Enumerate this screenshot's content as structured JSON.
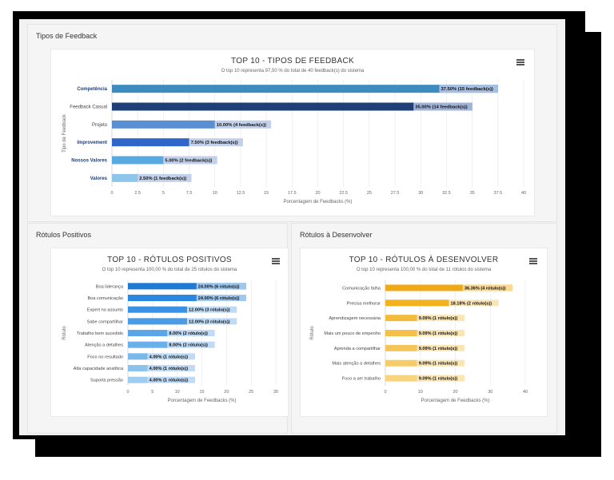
{
  "panels": {
    "feedback_types": {
      "header": "Tipos de Feedback",
      "chart_title": "TOP 10 - TIPOS DE FEEDBACK",
      "chart_subtitle": "O top 10 representa 97,50 % do total de 40 feedback(s) do sistema",
      "y_axis_label": "Tipo de Feedback",
      "x_axis_label": "Porcentagem de Feedbacks (%)"
    },
    "positive_labels": {
      "header": "Rótulos Positivos",
      "chart_title": "TOP 10 - RÓTULOS POSITIVOS",
      "chart_subtitle": "O top 10 representa 100,00 % do total de 25 rótulos do sistema",
      "y_axis_label": "Rótulo",
      "x_axis_label": "Porcentagem de Feedbacks (%)"
    },
    "develop_labels": {
      "header": "Rótulos à Desenvolver",
      "chart_title": "TOP 10 - RÓTULOS À DESENVOLVER",
      "chart_subtitle": "O top 10 representa 100,00 % do total de 11 rótulos do sistema",
      "y_axis_label": "Rótulo",
      "x_axis_label": "Porcentagem de Feedbacks (%)"
    }
  },
  "menu_icon": "hamburger-menu-icon",
  "chart_data": [
    {
      "type": "bar",
      "orientation": "horizontal",
      "title": "TOP 10 - TIPOS DE FEEDBACK",
      "subtitle": "O top 10 representa 97,50 % do total de 40 feedback(s) do sistema",
      "ylabel": "Tipo de Feedback",
      "xlabel": "Porcentagem de Feedbacks (%)",
      "xlim": [
        0,
        40
      ],
      "xticks": [
        0,
        2.5,
        5,
        7.5,
        10,
        12.5,
        15,
        17.5,
        20,
        22.5,
        25,
        27.5,
        30,
        32.5,
        35,
        37.5,
        40
      ],
      "grid": true,
      "categories": [
        "Competência",
        "Feedback Casual",
        "Projeto",
        "Improvement",
        "Nossos Valores",
        "Valores"
      ],
      "category_bold": [
        true,
        false,
        false,
        true,
        true,
        true
      ],
      "values": [
        37.5,
        35.0,
        10.0,
        7.5,
        5.0,
        2.5
      ],
      "data_labels": [
        "37.50% (15 feedback(s))",
        "35.00% (14 feedback(s))",
        "10.00% (4 feedback(s))",
        "7.50% (3 feedback(s))",
        "5.00% (2 feedback(s))",
        "2.50% (1 feedback(s))"
      ],
      "colors": [
        "#3d8bbf",
        "#1e3f78",
        "#5b8fd4",
        "#2f66c9",
        "#5aa8e0",
        "#8ec5ea"
      ]
    },
    {
      "type": "bar",
      "orientation": "horizontal",
      "title": "TOP 10 - RÓTULOS POSITIVOS",
      "subtitle": "O top 10 representa 100,00 % do total de 25 rótulos do sistema",
      "ylabel": "Rótulo",
      "xlabel": "Porcentagem de Feedbacks (%)",
      "xlim": [
        0,
        30
      ],
      "xticks": [
        0,
        5,
        10,
        15,
        20,
        25,
        30
      ],
      "grid": true,
      "categories": [
        "Boa liderança",
        "Boa comunicação",
        "Expert no assunto",
        "Sabe compartilhar",
        "Trabalho bem sucedido",
        "Atenção a detalhes",
        "Foco no resultado",
        "Alta capacidade analítica",
        "Suporta pressão"
      ],
      "values": [
        24.0,
        24.0,
        12.0,
        12.0,
        8.0,
        8.0,
        4.0,
        4.0,
        4.0
      ],
      "data_labels": [
        "24.00% (6 rótulo(s))",
        "24.00% (6 rótulo(s))",
        "12.00% (3 rótulo(s))",
        "12.00% (3 rótulo(s))",
        "8.00% (2 rótulo(s))",
        "8.00% (2 rótulo(s))",
        "4.00% (1 rótulo(s))",
        "4.00% (1 rótulo(s))",
        "4.00% (1 rótulo(s))"
      ],
      "colors": [
        "#1f7ad6",
        "#2a88e0",
        "#3a92e4",
        "#4a9ce6",
        "#5aa6e8",
        "#6ab0ea",
        "#7ab9ec",
        "#8cc3ee",
        "#9ecdf0"
      ]
    },
    {
      "type": "bar",
      "orientation": "horizontal",
      "title": "TOP 10 - RÓTULOS À DESENVOLVER",
      "subtitle": "O top 10 representa 100,00 % do total de 11 rótulos do sistema",
      "ylabel": "Rótulo",
      "xlabel": "Porcentagem de Feedbacks (%)",
      "xlim": [
        0,
        40
      ],
      "xticks": [
        0,
        10,
        20,
        30,
        40
      ],
      "grid": true,
      "categories": [
        "Comunicação falha",
        "Precisa melhorar",
        "Aprendizagem necessária",
        "Mais um pouco de empenho",
        "Aprenda a compartilhar",
        "Mais atenção a detalhes",
        "Foco a ser trabalho"
      ],
      "values": [
        36.36,
        18.18,
        9.09,
        9.09,
        9.09,
        9.09,
        9.09
      ],
      "data_labels": [
        "36.36% (4 rótulo(s))",
        "18.18% (2 rótulo(s))",
        "9.09% (1 rótulo(s))",
        "9.09% (1 rótulo(s))",
        "9.09% (1 rótulo(s))",
        "9.09% (1 rótulo(s))",
        "9.09% (1 rótulo(s))"
      ],
      "colors": [
        "#f0a916",
        "#f2b11f",
        "#f3bb3a",
        "#f4c04a",
        "#f5c55a",
        "#f6cb6a",
        "#f8d47e"
      ]
    }
  ]
}
